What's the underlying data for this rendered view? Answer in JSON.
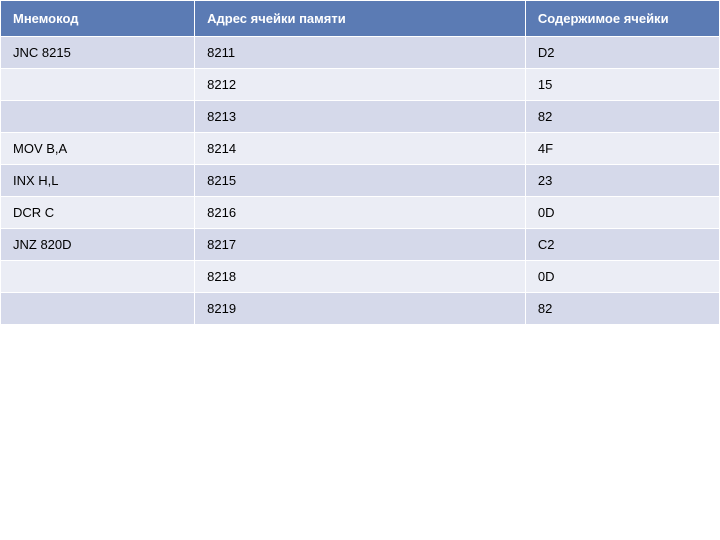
{
  "table": {
    "header_bg": "#5b7bb4",
    "header_text_color": "#ffffff",
    "row_alt_bg1": "#d5d9ea",
    "row_alt_bg2": "#ebedf5",
    "row_text_color": "#000000",
    "columns": [
      "Мнемокод",
      "Адрес ячейки памяти",
      "Содержимое ячейки"
    ],
    "rows": [
      [
        "JNC 8215",
        "8211",
        "D2"
      ],
      [
        "",
        "8212",
        "15"
      ],
      [
        "",
        "8213",
        "82"
      ],
      [
        "MOV B,A",
        "8214",
        "4F"
      ],
      [
        "INX H,L",
        "8215",
        "23"
      ],
      [
        "DCR С",
        "8216",
        "0D"
      ],
      [
        "JNZ 820D",
        "8217",
        "C2"
      ],
      [
        "",
        "8218",
        "0D"
      ],
      [
        "",
        "8219",
        "82"
      ]
    ]
  }
}
